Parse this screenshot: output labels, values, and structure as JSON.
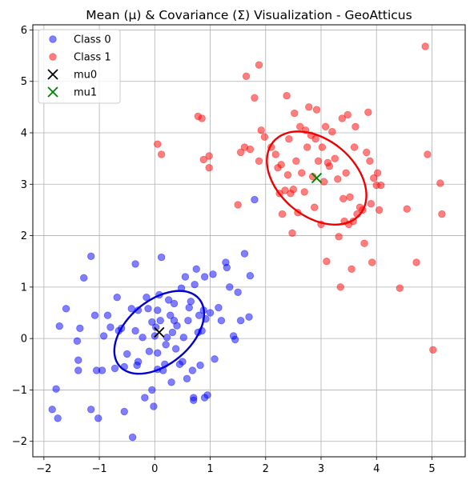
{
  "chart_data": {
    "type": "scatter",
    "title": "Mean (μ) & Covariance (Σ) Visualization - GeoAtticus",
    "xlabel": "",
    "ylabel": "",
    "xlim": [
      -2.2,
      5.6
    ],
    "ylim": [
      -2.3,
      6.1
    ],
    "xticks": [
      -2,
      -1,
      0,
      1,
      2,
      3,
      4,
      5
    ],
    "yticks": [
      -2,
      -1,
      0,
      1,
      2,
      3,
      4,
      5,
      6
    ],
    "grid": true,
    "legend_position": "top-left",
    "series": [
      {
        "name": "Class 0",
        "color": "#0000ff",
        "alpha": 0.5,
        "points": [
          [
            -1.85,
            -1.38
          ],
          [
            -1.75,
            -1.55
          ],
          [
            -1.78,
            -0.98
          ],
          [
            -1.72,
            0.24
          ],
          [
            -1.6,
            0.58
          ],
          [
            -1.4,
            -0.05
          ],
          [
            -1.38,
            -0.42
          ],
          [
            -1.38,
            -0.62
          ],
          [
            -1.35,
            0.2
          ],
          [
            -1.28,
            1.18
          ],
          [
            -1.15,
            -1.38
          ],
          [
            -1.15,
            1.6
          ],
          [
            -1.08,
            0.45
          ],
          [
            -1.05,
            -0.62
          ],
          [
            -1.02,
            -1.55
          ],
          [
            -0.95,
            -0.62
          ],
          [
            -0.92,
            0.05
          ],
          [
            -0.85,
            0.45
          ],
          [
            -0.8,
            0.22
          ],
          [
            -0.72,
            -0.58
          ],
          [
            -0.68,
            0.8
          ],
          [
            -0.65,
            0.15
          ],
          [
            -0.6,
            0.2
          ],
          [
            -0.55,
            -1.42
          ],
          [
            -0.5,
            -0.3
          ],
          [
            -0.42,
            0.58
          ],
          [
            -0.4,
            -1.92
          ],
          [
            -0.35,
            0.15
          ],
          [
            -0.35,
            1.45
          ],
          [
            -0.32,
            -0.52
          ],
          [
            -0.3,
            -0.45
          ],
          [
            -0.22,
            0.02
          ],
          [
            -0.18,
            -1.15
          ],
          [
            -0.15,
            0.8
          ],
          [
            -0.12,
            0.58
          ],
          [
            -0.1,
            -0.25
          ],
          [
            -0.05,
            -1.0
          ],
          [
            -0.05,
            0.32
          ],
          [
            -0.02,
            -1.32
          ],
          [
            0.0,
            0.05
          ],
          [
            0.02,
            0.22
          ],
          [
            0.05,
            0.55
          ],
          [
            0.05,
            -0.28
          ],
          [
            0.08,
            0.85
          ],
          [
            0.1,
            0.35
          ],
          [
            0.12,
            1.58
          ],
          [
            0.15,
            -0.62
          ],
          [
            0.18,
            -0.5
          ],
          [
            0.2,
            -0.12
          ],
          [
            0.22,
            0.02
          ],
          [
            0.25,
            0.75
          ],
          [
            0.28,
            0.45
          ],
          [
            0.3,
            -0.85
          ],
          [
            0.32,
            0.12
          ],
          [
            0.35,
            0.68
          ],
          [
            0.38,
            -0.2
          ],
          [
            0.4,
            0.25
          ],
          [
            0.45,
            -0.5
          ],
          [
            0.48,
            0.98
          ],
          [
            0.5,
            -0.45
          ],
          [
            0.52,
            0.02
          ],
          [
            0.55,
            1.2
          ],
          [
            0.58,
            -0.78
          ],
          [
            0.6,
            0.35
          ],
          [
            0.62,
            0.6
          ],
          [
            0.65,
            0.72
          ],
          [
            0.68,
            -0.62
          ],
          [
            0.7,
            -1.15
          ],
          [
            0.72,
            1.05
          ],
          [
            0.75,
            1.35
          ],
          [
            0.78,
            0.12
          ],
          [
            0.8,
            0.45
          ],
          [
            0.82,
            -0.52
          ],
          [
            0.85,
            0.15
          ],
          [
            0.88,
            0.55
          ],
          [
            0.9,
            1.2
          ],
          [
            0.92,
            0.38
          ],
          [
            0.95,
            -1.1
          ],
          [
            1.0,
            0.5
          ],
          [
            1.05,
            1.25
          ],
          [
            1.08,
            -0.4
          ],
          [
            1.15,
            0.6
          ],
          [
            1.2,
            0.35
          ],
          [
            1.28,
            1.48
          ],
          [
            1.3,
            1.38
          ],
          [
            1.35,
            1.0
          ],
          [
            1.42,
            0.05
          ],
          [
            1.45,
            -0.02
          ],
          [
            1.5,
            0.9
          ],
          [
            1.55,
            0.35
          ],
          [
            1.62,
            1.65
          ],
          [
            1.7,
            0.42
          ],
          [
            1.72,
            1.22
          ],
          [
            1.8,
            2.7
          ],
          [
            0.7,
            -1.2
          ],
          [
            0.9,
            -1.15
          ],
          [
            -0.55,
            -0.55
          ],
          [
            -0.3,
            0.55
          ],
          [
            0.05,
            -0.6
          ],
          [
            0.35,
            0.35
          ]
        ]
      },
      {
        "name": "Class 1",
        "color": "#ff0000",
        "alpha": 0.5,
        "points": [
          [
            0.05,
            3.78
          ],
          [
            0.12,
            3.58
          ],
          [
            0.78,
            4.32
          ],
          [
            0.85,
            4.28
          ],
          [
            0.88,
            3.48
          ],
          [
            0.98,
            3.55
          ],
          [
            0.98,
            3.32
          ],
          [
            1.5,
            2.6
          ],
          [
            1.55,
            3.62
          ],
          [
            1.62,
            3.72
          ],
          [
            1.65,
            5.1
          ],
          [
            1.72,
            3.68
          ],
          [
            1.8,
            4.68
          ],
          [
            1.88,
            5.32
          ],
          [
            1.88,
            3.45
          ],
          [
            1.92,
            4.05
          ],
          [
            1.98,
            3.92
          ],
          [
            2.1,
            3.72
          ],
          [
            2.18,
            3.58
          ],
          [
            2.22,
            3.32
          ],
          [
            2.25,
            2.82
          ],
          [
            2.28,
            3.38
          ],
          [
            2.3,
            2.42
          ],
          [
            2.35,
            2.88
          ],
          [
            2.38,
            4.72
          ],
          [
            2.4,
            3.18
          ],
          [
            2.42,
            3.88
          ],
          [
            2.45,
            2.82
          ],
          [
            2.48,
            2.05
          ],
          [
            2.5,
            2.9
          ],
          [
            2.52,
            4.38
          ],
          [
            2.55,
            3.45
          ],
          [
            2.58,
            2.45
          ],
          [
            2.62,
            4.12
          ],
          [
            2.65,
            3.22
          ],
          [
            2.7,
            2.85
          ],
          [
            2.72,
            4.05
          ],
          [
            2.75,
            3.72
          ],
          [
            2.78,
            4.5
          ],
          [
            2.82,
            3.95
          ],
          [
            2.85,
            3.15
          ],
          [
            2.88,
            2.55
          ],
          [
            2.9,
            3.88
          ],
          [
            2.95,
            3.45
          ],
          [
            3.0,
            2.22
          ],
          [
            3.02,
            3.72
          ],
          [
            3.05,
            3.05
          ],
          [
            3.08,
            4.12
          ],
          [
            3.1,
            1.5
          ],
          [
            3.15,
            3.35
          ],
          [
            3.2,
            4.02
          ],
          [
            3.25,
            3.5
          ],
          [
            3.3,
            3.1
          ],
          [
            3.32,
            1.98
          ],
          [
            3.35,
            1.0
          ],
          [
            3.38,
            4.28
          ],
          [
            3.4,
            2.72
          ],
          [
            3.42,
            2.28
          ],
          [
            3.45,
            3.22
          ],
          [
            3.48,
            4.35
          ],
          [
            3.5,
            2.22
          ],
          [
            3.52,
            2.75
          ],
          [
            3.55,
            1.35
          ],
          [
            3.6,
            3.72
          ],
          [
            3.62,
            4.12
          ],
          [
            3.65,
            2.42
          ],
          [
            3.7,
            2.55
          ],
          [
            3.75,
            2.5
          ],
          [
            3.78,
            1.85
          ],
          [
            3.82,
            3.62
          ],
          [
            3.85,
            4.4
          ],
          [
            3.88,
            3.45
          ],
          [
            3.9,
            2.62
          ],
          [
            3.92,
            1.48
          ],
          [
            3.95,
            3.12
          ],
          [
            4.0,
            2.98
          ],
          [
            4.02,
            3.22
          ],
          [
            4.05,
            2.5
          ],
          [
            4.08,
            2.98
          ],
          [
            4.42,
            0.98
          ],
          [
            4.55,
            2.52
          ],
          [
            4.72,
            1.48
          ],
          [
            4.88,
            5.68
          ],
          [
            4.92,
            3.58
          ],
          [
            5.02,
            -0.22
          ],
          [
            5.15,
            3.02
          ],
          [
            5.18,
            2.42
          ],
          [
            2.92,
            4.45
          ],
          [
            3.12,
            3.42
          ],
          [
            3.58,
            2.28
          ]
        ]
      }
    ],
    "means": [
      {
        "name": "mu0",
        "x": 0.08,
        "y": 0.12,
        "color": "#000000"
      },
      {
        "name": "mu1",
        "x": 2.92,
        "y": 3.12,
        "color": "#008000"
      }
    ],
    "ellipses": [
      {
        "class": "Class 0",
        "center": [
          0.08,
          0.12
        ],
        "rx": 0.94,
        "ry": 0.62,
        "angle_deg": 40,
        "color": "#0000cc"
      },
      {
        "class": "Class 1",
        "center": [
          2.92,
          3.12
        ],
        "rx": 1.02,
        "ry": 0.74,
        "angle_deg": -40,
        "color": "#ee0000"
      }
    ]
  }
}
